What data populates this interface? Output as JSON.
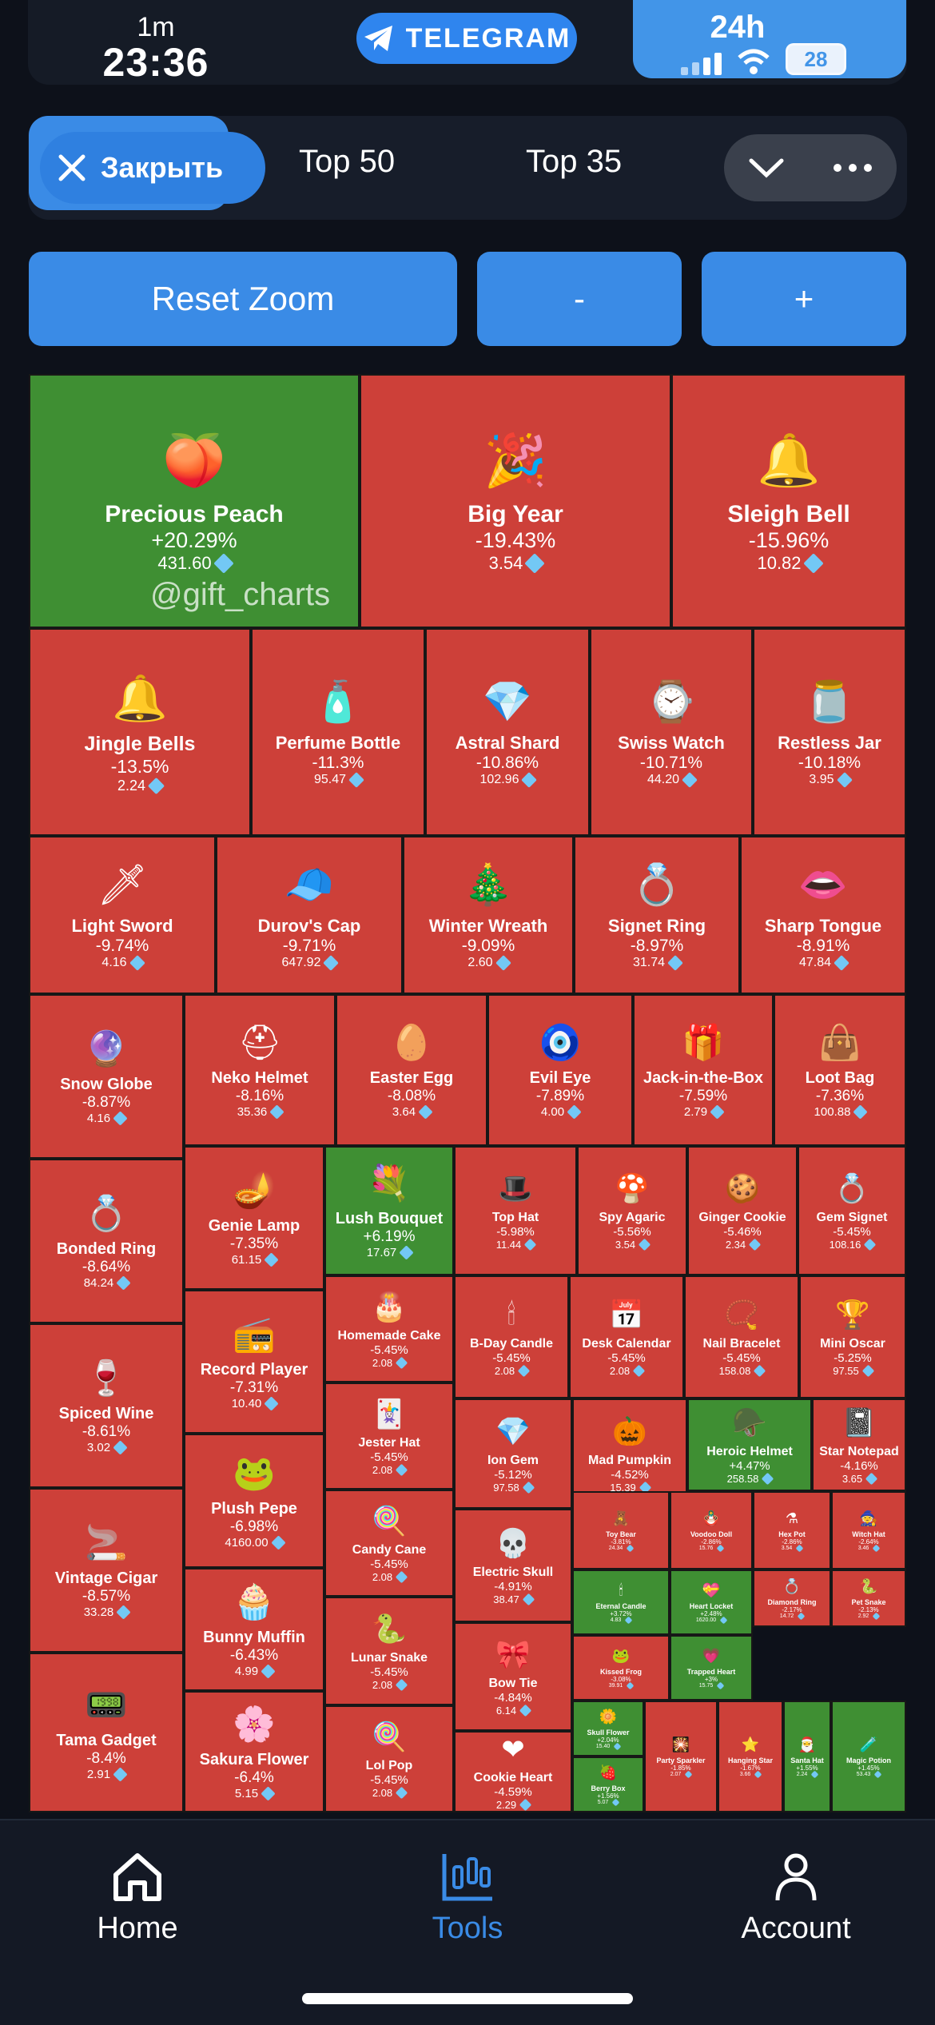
{
  "status": {
    "minutes_label": "1m",
    "time": "23:36",
    "telegram_label": "TELEGRAM",
    "period": "24h",
    "battery": "28"
  },
  "tabs": {
    "close_label": "Закрыть",
    "items": [
      "Top 50",
      "Top 35"
    ]
  },
  "zoom": {
    "reset_label": "Reset Zoom",
    "minus_label": "-",
    "plus_label": "+"
  },
  "watermark": "@gift_charts",
  "colors": {
    "up": "#3f8f33",
    "down": "#cd4039",
    "accent": "#3a8be6"
  },
  "treemap": [
    {
      "name": "Precious Peach",
      "change": "+20.29%",
      "price": "431.60",
      "trend": "up",
      "icon": "peach-icon",
      "emoji": "🍑"
    },
    {
      "name": "Big Year",
      "change": "-19.43%",
      "price": "3.54",
      "trend": "down",
      "icon": "year-icon",
      "emoji": "🎉"
    },
    {
      "name": "Sleigh Bell",
      "change": "-15.96%",
      "price": "10.82",
      "trend": "down",
      "icon": "bell-icon",
      "emoji": "🔔"
    },
    {
      "name": "Jingle Bells",
      "change": "-13.5%",
      "price": "2.24",
      "trend": "down",
      "icon": "bells-icon",
      "emoji": "🔔"
    },
    {
      "name": "Perfume Bottle",
      "change": "-11.3%",
      "price": "95.47",
      "trend": "down",
      "icon": "perfume-icon",
      "emoji": "🧴"
    },
    {
      "name": "Astral Shard",
      "change": "-10.86%",
      "price": "102.96",
      "trend": "down",
      "icon": "shard-icon",
      "emoji": "💎"
    },
    {
      "name": "Swiss Watch",
      "change": "-10.71%",
      "price": "44.20",
      "trend": "down",
      "icon": "watch-icon",
      "emoji": "⌚"
    },
    {
      "name": "Restless Jar",
      "change": "-10.18%",
      "price": "3.95",
      "trend": "down",
      "icon": "jar-icon",
      "emoji": "🫙"
    },
    {
      "name": "Light Sword",
      "change": "-9.74%",
      "price": "4.16",
      "trend": "down",
      "icon": "sword-icon",
      "emoji": "🗡"
    },
    {
      "name": "Durov's Cap",
      "change": "-9.71%",
      "price": "647.92",
      "trend": "down",
      "icon": "cap-icon",
      "emoji": "🧢"
    },
    {
      "name": "Winter Wreath",
      "change": "-9.09%",
      "price": "2.60",
      "trend": "down",
      "icon": "wreath-icon",
      "emoji": "🎄"
    },
    {
      "name": "Signet Ring",
      "change": "-8.97%",
      "price": "31.74",
      "trend": "down",
      "icon": "ring-icon",
      "emoji": "💍"
    },
    {
      "name": "Sharp Tongue",
      "change": "-8.91%",
      "price": "47.84",
      "trend": "down",
      "icon": "tongue-icon",
      "emoji": "👄"
    },
    {
      "name": "Snow Globe",
      "change": "-8.87%",
      "price": "4.16",
      "trend": "down",
      "icon": "globe-icon",
      "emoji": "🔮"
    },
    {
      "name": "Neko Helmet",
      "change": "-8.16%",
      "price": "35.36",
      "trend": "down",
      "icon": "helmet-icon",
      "emoji": "⛑"
    },
    {
      "name": "Easter Egg",
      "change": "-8.08%",
      "price": "3.64",
      "trend": "down",
      "icon": "egg-icon",
      "emoji": "🥚"
    },
    {
      "name": "Evil Eye",
      "change": "-7.89%",
      "price": "4.00",
      "trend": "down",
      "icon": "eye-icon",
      "emoji": "🧿"
    },
    {
      "name": "Jack-in-the-Box",
      "change": "-7.59%",
      "price": "2.79",
      "trend": "down",
      "icon": "box-icon",
      "emoji": "🎁"
    },
    {
      "name": "Loot Bag",
      "change": "-7.36%",
      "price": "100.88",
      "trend": "down",
      "icon": "bag-icon",
      "emoji": "👜"
    },
    {
      "name": "Bonded Ring",
      "change": "-8.64%",
      "price": "84.24",
      "trend": "down",
      "icon": "ring-icon",
      "emoji": "💍"
    },
    {
      "name": "Genie Lamp",
      "change": "-7.35%",
      "price": "61.15",
      "trend": "down",
      "icon": "lamp-icon",
      "emoji": "🪔"
    },
    {
      "name": "Lush Bouquet",
      "change": "+6.19%",
      "price": "17.67",
      "trend": "up",
      "icon": "bouquet-icon",
      "emoji": "💐"
    },
    {
      "name": "Top Hat",
      "change": "-5.98%",
      "price": "11.44",
      "trend": "down",
      "icon": "hat-icon",
      "emoji": "🎩"
    },
    {
      "name": "Spy Agaric",
      "change": "-5.56%",
      "price": "3.54",
      "trend": "down",
      "icon": "mushroom-icon",
      "emoji": "🍄"
    },
    {
      "name": "Ginger Cookie",
      "change": "-5.46%",
      "price": "2.34",
      "trend": "down",
      "icon": "cookie-icon",
      "emoji": "🍪"
    },
    {
      "name": "Gem Signet",
      "change": "-5.45%",
      "price": "108.16",
      "trend": "down",
      "icon": "gem-icon",
      "emoji": "💍"
    },
    {
      "name": "Spiced Wine",
      "change": "-8.61%",
      "price": "3.02",
      "trend": "down",
      "icon": "wine-icon",
      "emoji": "🍷"
    },
    {
      "name": "Record Player",
      "change": "-7.31%",
      "price": "10.40",
      "trend": "down",
      "icon": "record-icon",
      "emoji": "📻"
    },
    {
      "name": "Homemade Cake",
      "change": "-5.45%",
      "price": "2.08",
      "trend": "down",
      "icon": "cake-icon",
      "emoji": "🎂"
    },
    {
      "name": "B-Day Candle",
      "change": "-5.45%",
      "price": "2.08",
      "trend": "down",
      "icon": "candle-icon",
      "emoji": "🕯"
    },
    {
      "name": "Desk Calendar",
      "change": "-5.45%",
      "price": "2.08",
      "trend": "down",
      "icon": "calendar-icon",
      "emoji": "📅"
    },
    {
      "name": "Nail Bracelet",
      "change": "-5.45%",
      "price": "158.08",
      "trend": "down",
      "icon": "bracelet-icon",
      "emoji": "📿"
    },
    {
      "name": "Mini Oscar",
      "change": "-5.25%",
      "price": "97.55",
      "trend": "down",
      "icon": "oscar-icon",
      "emoji": "🏆"
    },
    {
      "name": "Vintage Cigar",
      "change": "-8.57%",
      "price": "33.28",
      "trend": "down",
      "icon": "cigar-icon",
      "emoji": "🚬"
    },
    {
      "name": "Plush Pepe",
      "change": "-6.98%",
      "price": "4160.00",
      "trend": "down",
      "icon": "pepe-icon",
      "emoji": "🐸"
    },
    {
      "name": "Jester Hat",
      "change": "-5.45%",
      "price": "2.08",
      "trend": "down",
      "icon": "jester-icon",
      "emoji": "🃏"
    },
    {
      "name": "Ion Gem",
      "change": "-5.12%",
      "price": "97.58",
      "trend": "down",
      "icon": "gem-icon",
      "emoji": "💎"
    },
    {
      "name": "Mad Pumpkin",
      "change": "-4.52%",
      "price": "15.39",
      "trend": "down",
      "icon": "pumpkin-icon",
      "emoji": "🎃"
    },
    {
      "name": "Heroic Helmet",
      "change": "+4.47%",
      "price": "258.58",
      "trend": "up",
      "icon": "helmet-icon",
      "emoji": "🪖"
    },
    {
      "name": "Star Notepad",
      "change": "-4.16%",
      "price": "3.65",
      "trend": "down",
      "icon": "notepad-icon",
      "emoji": "📓"
    },
    {
      "name": "Tama Gadget",
      "change": "-8.4%",
      "price": "2.91",
      "trend": "down",
      "icon": "gadget-icon",
      "emoji": "📟"
    },
    {
      "name": "Bunny Muffin",
      "change": "-6.43%",
      "price": "4.99",
      "trend": "down",
      "icon": "muffin-icon",
      "emoji": "🧁"
    },
    {
      "name": "Candy Cane",
      "change": "-5.45%",
      "price": "2.08",
      "trend": "down",
      "icon": "candy-icon",
      "emoji": "🍭"
    },
    {
      "name": "Electric Skull",
      "change": "-4.91%",
      "price": "38.47",
      "trend": "down",
      "icon": "skull-icon",
      "emoji": "💀"
    },
    {
      "name": "Toy Bear",
      "change": "-3.81%",
      "price": "24.34",
      "trend": "down",
      "icon": "bear-icon",
      "emoji": "🧸"
    },
    {
      "name": "Voodoo Doll",
      "change": "-2.86%",
      "price": "15.76",
      "trend": "down",
      "icon": "doll-icon",
      "emoji": "🪆"
    },
    {
      "name": "Hex Pot",
      "change": "-2.86%",
      "price": "3.54",
      "trend": "down",
      "icon": "pot-icon",
      "emoji": "⚗"
    },
    {
      "name": "Witch Hat",
      "change": "-2.64%",
      "price": "3.46",
      "trend": "down",
      "icon": "witch-hat-icon",
      "emoji": "🧙"
    },
    {
      "name": "Sakura Flower",
      "change": "-6.4%",
      "price": "5.15",
      "trend": "down",
      "icon": "flower-icon",
      "emoji": "🌸"
    },
    {
      "name": "Lunar Snake",
      "change": "-5.45%",
      "price": "2.08",
      "trend": "down",
      "icon": "snake-icon",
      "emoji": "🐍"
    },
    {
      "name": "Bow Tie",
      "change": "-4.84%",
      "price": "6.14",
      "trend": "down",
      "icon": "bowtie-icon",
      "emoji": "🎀"
    },
    {
      "name": "Eternal Candle",
      "change": "+3.72%",
      "price": "4.83",
      "trend": "up",
      "icon": "candle-icon",
      "emoji": "🕯"
    },
    {
      "name": "Heart Locket",
      "change": "+2.48%",
      "price": "1620.00",
      "trend": "up",
      "icon": "locket-icon",
      "emoji": "💝"
    },
    {
      "name": "Diamond Ring",
      "change": "-2.17%",
      "price": "14.72",
      "trend": "down",
      "icon": "ring-icon",
      "emoji": "💍"
    },
    {
      "name": "Pet Snake",
      "change": "-2.13%",
      "price": "2.92",
      "trend": "down",
      "icon": "snake-icon",
      "emoji": "🐍"
    },
    {
      "name": "Lol Pop",
      "change": "-5.45%",
      "price": "2.08",
      "trend": "down",
      "icon": "lollipop-icon",
      "emoji": "🍭"
    },
    {
      "name": "Cookie Heart",
      "change": "-4.59%",
      "price": "2.29",
      "trend": "down",
      "icon": "heart-icon",
      "emoji": "❤"
    },
    {
      "name": "Kissed Frog",
      "change": "-3.08%",
      "price": "39.91",
      "trend": "down",
      "icon": "frog-icon",
      "emoji": "🐸"
    },
    {
      "name": "Trapped Heart",
      "change": "+3%",
      "price": "15.75",
      "trend": "up",
      "icon": "heart-icon",
      "emoji": "💗"
    },
    {
      "name": "Skull Flower",
      "change": "+2.04%",
      "price": "15.40",
      "trend": "up",
      "icon": "flower-icon",
      "emoji": "🌼"
    },
    {
      "name": "Berry Box",
      "change": "+1.56%",
      "price": "5.07",
      "trend": "up",
      "icon": "box-icon",
      "emoji": "🍓"
    },
    {
      "name": "Party Sparkler",
      "change": "-1.85%",
      "price": "2.07",
      "trend": "down",
      "icon": "sparkler-icon",
      "emoji": "🎇"
    },
    {
      "name": "Hanging Star",
      "change": "-1.67%",
      "price": "3.66",
      "trend": "down",
      "icon": "star-icon",
      "emoji": "⭐"
    },
    {
      "name": "Santa Hat",
      "change": "+1.55%",
      "price": "2.24",
      "trend": "up",
      "icon": "santa-hat-icon",
      "emoji": "🎅"
    },
    {
      "name": "Magic Potion",
      "change": "+1.45%",
      "price": "53.43",
      "trend": "up",
      "icon": "potion-icon",
      "emoji": "🧪"
    }
  ],
  "nav": {
    "items": [
      "Home",
      "Tools",
      "Account"
    ]
  }
}
